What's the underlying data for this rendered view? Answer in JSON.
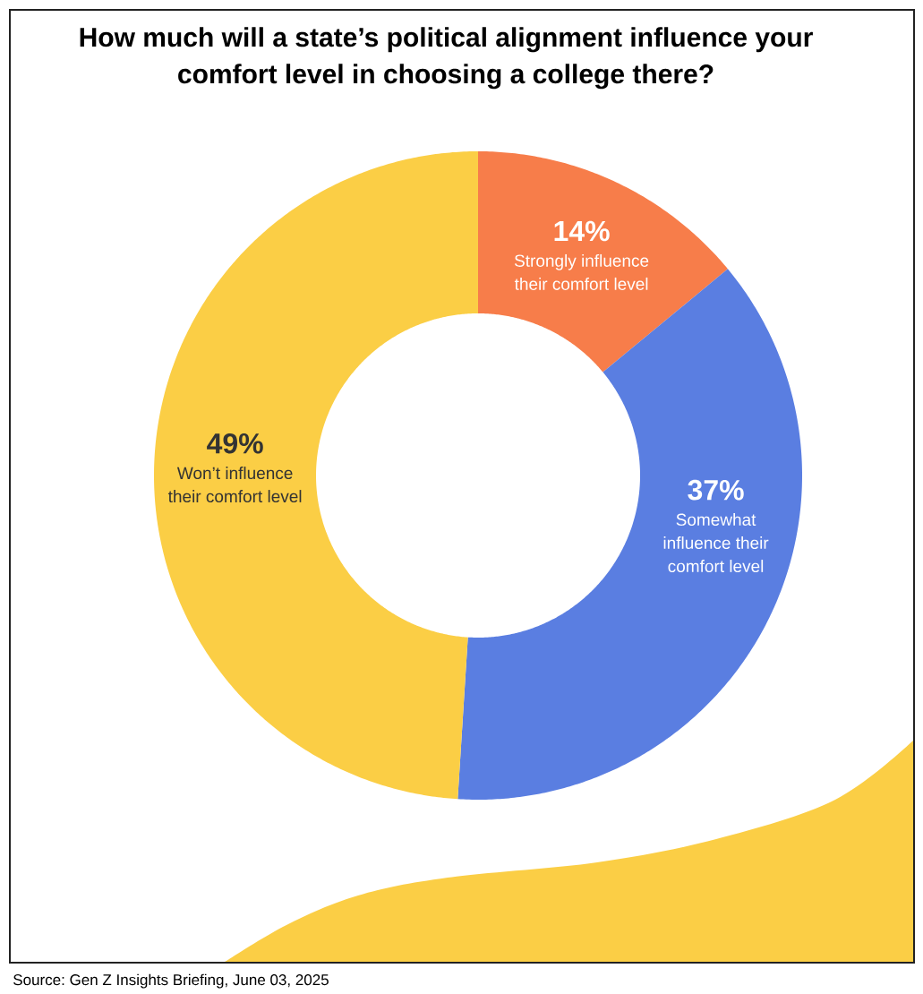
{
  "chart_data": {
    "type": "donut",
    "title": "How much will a state’s political alignment influence your comfort level in choosing a college there?",
    "categories": [
      "Strongly influence their comfort level",
      "Somewhat influence their comfort level",
      "Won’t influence their comfort level"
    ],
    "values": [
      14,
      37,
      49
    ],
    "colors": [
      "#F77D4A",
      "#5A7EE1",
      "#FBCE45"
    ],
    "value_labels": [
      "14%",
      "37%",
      "49%"
    ],
    "annotations": [
      "Source: Gen Z Insights Briefing, June 03, 2025"
    ]
  }
}
